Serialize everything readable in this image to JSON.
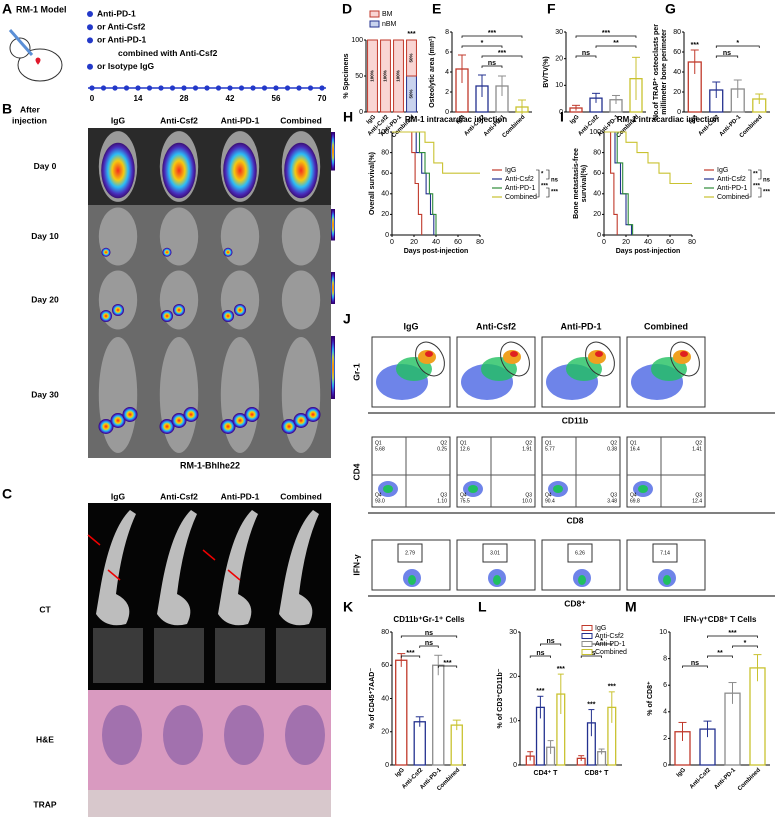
{
  "panels": {
    "A": {
      "letter": "A",
      "title": "RM-1 Model",
      "treatments": [
        "Anti-PD-1",
        "or Anti-Csf2",
        "or Anti-PD-1",
        "combined with Anti-Csf2",
        "or Isotype IgG"
      ],
      "timeline": [
        0,
        14,
        28,
        42,
        56,
        70
      ]
    },
    "B": {
      "letter": "B",
      "row_header": [
        "After",
        "injection"
      ],
      "columns": [
        "IgG",
        "Anti-Csf2",
        "Anti-PD-1",
        "Combined"
      ],
      "rows": [
        "Day 0",
        "Day 10",
        "Day 20",
        "Day 30"
      ],
      "footer": "RM-1-Bhlhe22"
    },
    "C": {
      "letter": "C",
      "columns": [
        "IgG",
        "Anti-Csf2",
        "Anti-PD-1",
        "Combined"
      ],
      "rows": [
        "CT",
        "H&E",
        "TRAP"
      ]
    },
    "J": {
      "letter": "J",
      "columns": [
        "IgG",
        "Anti-Csf2",
        "Anti-PD-1",
        "Combined"
      ],
      "axes": [
        {
          "y": "Gr-1",
          "x": "CD11b"
        },
        {
          "y": "CD4",
          "x": "CD8"
        },
        {
          "y": "IFN-γ",
          "x": "CD8⁺"
        }
      ],
      "quadrant_names": [
        "Q1",
        "Q2",
        "Q3",
        "Q4"
      ],
      "quadrant_values": [
        [
          "5.68",
          "0.25",
          "1.10",
          "93.0"
        ],
        [
          "12.6",
          "1.91",
          "10.0",
          "75.5"
        ],
        [
          "5.77",
          "0.38",
          "3.48",
          "90.4"
        ],
        [
          "16.4",
          "1.41",
          "12.4",
          "69.8"
        ]
      ],
      "gate_values": [
        "2.79",
        "3.01",
        "6.26",
        "7.14"
      ]
    }
  },
  "chart_data": [
    {
      "letter": "D",
      "type": "stacked",
      "ylabel": "% Specimens",
      "categories": [
        "IgG",
        "Anti-Csf2",
        "Anti-PD-1",
        "Combined"
      ],
      "series": [
        {
          "name": "BM",
          "color": "#c0392b",
          "fill": "#f9d5d3",
          "values": [
            100,
            100,
            100,
            50
          ],
          "value_labels": [
            "100%",
            "100%",
            "100%",
            "50%"
          ]
        },
        {
          "name": "nBM",
          "color": "#23318f",
          "fill": "#c9d3ee",
          "values": [
            0,
            0,
            0,
            50
          ],
          "value_labels": [
            "0%",
            "0%",
            "0%",
            "50%"
          ]
        }
      ],
      "ylim": [
        0,
        100
      ],
      "yticks": [
        0,
        50,
        100
      ],
      "annotations": [
        {
          "text": "***",
          "category": 3
        }
      ]
    },
    {
      "letter": "E",
      "type": "bar",
      "ylabel": "Osteolytic area (mm²)",
      "categories": [
        "IgG",
        "Anti-Csf2",
        "Anti-PD-1",
        "Combined"
      ],
      "colors": [
        "#c0392b",
        "#23318f",
        "#8c8c8c",
        "#c9c230"
      ],
      "values": [
        4.3,
        2.6,
        2.6,
        0.5
      ],
      "errors": [
        1.4,
        1.1,
        1.0,
        0.7
      ],
      "ylim": [
        0,
        8
      ],
      "yticks": [
        0,
        2,
        4,
        6,
        8
      ],
      "annotations": [
        {
          "text": "***",
          "between": [
            0,
            3
          ]
        },
        {
          "text": "*",
          "between": [
            0,
            2
          ]
        },
        {
          "text": "***",
          "between": [
            1,
            3
          ]
        },
        {
          "text": "ns",
          "between": [
            1,
            2
          ]
        }
      ]
    },
    {
      "letter": "F",
      "type": "bar",
      "ylabel": "BV/TV(%)",
      "categories": [
        "IgG",
        "Anti-Csf2",
        "Anti-PD-1",
        "Combined"
      ],
      "colors": [
        "#c0392b",
        "#23318f",
        "#8c8c8c",
        "#c9c230"
      ],
      "values": [
        1.5,
        5.2,
        4.6,
        12.5
      ],
      "errors": [
        1.0,
        1.8,
        1.6,
        8.0
      ],
      "ylim": [
        0,
        30
      ],
      "yticks": [
        0,
        10,
        20,
        30
      ],
      "annotations": [
        {
          "text": "***",
          "between": [
            0,
            3
          ]
        },
        {
          "text": "**",
          "between": [
            1,
            3
          ]
        },
        {
          "text": "ns",
          "between": [
            0,
            1
          ]
        }
      ]
    },
    {
      "letter": "G",
      "type": "bar",
      "ylabel": [
        "No.of TRAP⁺ osteoclasts per",
        "millimeter bone perimeter"
      ],
      "categories": [
        "IgG",
        "Anti-Csf2",
        "Anti-PD-1",
        "Combined"
      ],
      "colors": [
        "#c0392b",
        "#23318f",
        "#8c8c8c",
        "#c9c230"
      ],
      "values": [
        50,
        22,
        23,
        13
      ],
      "errors": [
        12,
        8,
        9,
        5
      ],
      "ylim": [
        0,
        80
      ],
      "yticks": [
        0,
        20,
        40,
        60,
        80
      ],
      "annotations": [
        {
          "text": "***",
          "category": 0
        },
        {
          "text": "*",
          "between": [
            1,
            3
          ]
        },
        {
          "text": "ns",
          "between": [
            1,
            2
          ]
        }
      ]
    },
    {
      "letter": "H",
      "type": "survival",
      "title": "RM-1 intracardiac injection",
      "ylabel": "Overall survival(%)",
      "xlabel": "Days post-injection",
      "xlim": [
        0,
        80
      ],
      "xticks": [
        0,
        20,
        40,
        60,
        80
      ],
      "ylim": [
        0,
        100
      ],
      "yticks": [
        0,
        20,
        40,
        60,
        80,
        100
      ],
      "series": [
        {
          "name": "IgG",
          "color": "#c0392b",
          "x": [
            0,
            18,
            18,
            21,
            21,
            24,
            24,
            27,
            27
          ],
          "values": [
            100,
            100,
            80,
            80,
            50,
            50,
            20,
            20,
            0
          ]
        },
        {
          "name": "Anti-Csf2",
          "color": "#23318f",
          "x": [
            0,
            22,
            22,
            27,
            27,
            31,
            31,
            35,
            35,
            38,
            38
          ],
          "values": [
            100,
            100,
            80,
            80,
            60,
            60,
            40,
            40,
            20,
            20,
            0
          ]
        },
        {
          "name": "Anti-PD-1",
          "color": "#2e8b3a",
          "x": [
            0,
            25,
            25,
            30,
            30,
            34,
            34,
            37,
            37,
            40,
            40
          ],
          "values": [
            100,
            100,
            80,
            80,
            60,
            60,
            40,
            40,
            20,
            20,
            0
          ]
        },
        {
          "name": "Combined",
          "color": "#c9c230",
          "x": [
            0,
            30,
            30,
            38,
            38,
            46,
            46,
            80
          ],
          "values": [
            100,
            100,
            90,
            90,
            70,
            70,
            60,
            60
          ]
        }
      ],
      "annotations": [
        "*",
        "ns",
        "***",
        "***"
      ]
    },
    {
      "letter": "I",
      "type": "survival",
      "title": "RM-1 intracardiac injection",
      "ylabel": [
        "Bone metastasis-free",
        "survival(%)"
      ],
      "xlabel": "Days post-injection",
      "xlim": [
        0,
        80
      ],
      "xticks": [
        0,
        20,
        40,
        60,
        80
      ],
      "ylim": [
        0,
        100
      ],
      "yticks": [
        0,
        20,
        40,
        60,
        80,
        100
      ],
      "series": [
        {
          "name": "IgG",
          "color": "#c0392b",
          "x": [
            0,
            6,
            6,
            9,
            9,
            12,
            12
          ],
          "values": [
            100,
            100,
            60,
            60,
            20,
            20,
            0
          ]
        },
        {
          "name": "Anti-Csf2",
          "color": "#23318f",
          "x": [
            0,
            10,
            10,
            15,
            15,
            20,
            20,
            25,
            25
          ],
          "values": [
            100,
            100,
            70,
            70,
            40,
            40,
            10,
            10,
            0
          ]
        },
        {
          "name": "Anti-PD-1",
          "color": "#2e8b3a",
          "x": [
            0,
            12,
            12,
            17,
            17,
            22,
            22,
            26,
            26
          ],
          "values": [
            100,
            100,
            70,
            70,
            40,
            40,
            10,
            10,
            0
          ]
        },
        {
          "name": "Combined",
          "color": "#c9c230",
          "x": [
            0,
            20,
            20,
            30,
            30,
            40,
            40,
            50,
            50,
            60,
            60,
            80
          ],
          "values": [
            100,
            100,
            90,
            90,
            80,
            80,
            70,
            70,
            60,
            60,
            50,
            50
          ]
        }
      ],
      "annotations": [
        "**",
        "ns",
        "***",
        "***"
      ]
    },
    {
      "letter": "K",
      "type": "bar",
      "title": "CD11b⁺Gr-1⁺ Cells",
      "ylabel": "% of CD45⁺7AAD⁻",
      "categories": [
        "IgG",
        "Anti-Csf2",
        "Anti-PD-1",
        "Combined"
      ],
      "colors": [
        "#c0392b",
        "#23318f",
        "#8c8c8c",
        "#c9c230"
      ],
      "values": [
        63,
        26,
        60,
        24
      ],
      "errors": [
        4,
        3,
        6,
        3
      ],
      "ylim": [
        0,
        80
      ],
      "yticks": [
        0,
        20,
        40,
        60,
        80
      ],
      "annotations": [
        {
          "text": "ns",
          "between": [
            0,
            3
          ]
        },
        {
          "text": "ns",
          "between": [
            1,
            2
          ]
        },
        {
          "text": "***",
          "between": [
            0,
            1
          ]
        },
        {
          "text": "***",
          "between": [
            2,
            3
          ]
        }
      ]
    },
    {
      "letter": "L",
      "type": "grouped",
      "ylabel": "% of CD3⁺CD11b⁻",
      "categories": [
        "CD4⁺ T",
        "CD8⁺ T"
      ],
      "series": [
        {
          "name": "IgG",
          "color": "#c0392b",
          "values": [
            2,
            1.5
          ],
          "errors": [
            1,
            0.6
          ]
        },
        {
          "name": "Anti-Csf2",
          "color": "#23318f",
          "values": [
            13,
            9.5
          ],
          "errors": [
            2.5,
            3
          ],
          "marks": [
            "***",
            "***"
          ]
        },
        {
          "name": "Anti-PD-1",
          "color": "#8c8c8c",
          "values": [
            4,
            3
          ],
          "errors": [
            1.5,
            0.6
          ]
        },
        {
          "name": "Combined",
          "color": "#c9c230",
          "values": [
            16,
            13
          ],
          "errors": [
            4.5,
            3.5
          ],
          "marks": [
            "***",
            "***"
          ]
        }
      ],
      "ylim": [
        0,
        30
      ],
      "yticks": [
        0,
        10,
        20,
        30
      ],
      "annotations": [
        {
          "text": "ns",
          "group": 0,
          "between": [
            1,
            3
          ]
        },
        {
          "text": "ns",
          "group": 0,
          "between": [
            0,
            2
          ]
        },
        {
          "text": "*",
          "group": 1,
          "between": [
            1,
            3
          ]
        },
        {
          "text": "ns",
          "group": 1,
          "between": [
            0,
            2
          ]
        }
      ]
    },
    {
      "letter": "M",
      "type": "bar",
      "title": "IFN-γ⁺CD8⁺ T Cells",
      "ylabel": "% of CD8⁺",
      "categories": [
        "IgG",
        "Anti-Csf2",
        "Anti-PD-1",
        "Combined"
      ],
      "colors": [
        "#c0392b",
        "#23318f",
        "#8c8c8c",
        "#c9c230"
      ],
      "values": [
        2.5,
        2.7,
        5.4,
        7.3
      ],
      "errors": [
        0.7,
        0.6,
        0.8,
        1.0
      ],
      "ylim": [
        0,
        10
      ],
      "yticks": [
        0,
        2,
        4,
        6,
        8,
        10
      ],
      "annotations": [
        {
          "text": "***",
          "between": [
            1,
            3
          ]
        },
        {
          "text": "*",
          "between": [
            2,
            3
          ]
        },
        {
          "text": "**",
          "between": [
            1,
            2
          ]
        },
        {
          "text": "ns",
          "between": [
            0,
            1
          ]
        }
      ]
    }
  ]
}
